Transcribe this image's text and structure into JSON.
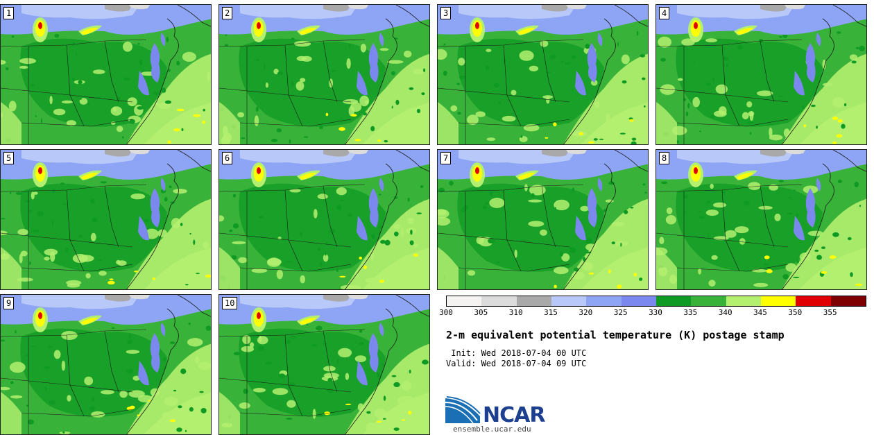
{
  "panels": [
    {
      "label": "1"
    },
    {
      "label": "2"
    },
    {
      "label": "3"
    },
    {
      "label": "4"
    },
    {
      "label": "5"
    },
    {
      "label": "6"
    },
    {
      "label": "7"
    },
    {
      "label": "8"
    },
    {
      "label": "9"
    },
    {
      "label": "10"
    }
  ],
  "colorbar": {
    "colors": [
      "#f5f2f2",
      "#dcdcdc",
      "#a9a9a9",
      "#b8c8f8",
      "#8ea4f4",
      "#7b88ee",
      "#0f9a23",
      "#38b238",
      "#b4f070",
      "#ffff00",
      "#e00000",
      "#7e0000"
    ],
    "ticks": [
      "300",
      "305",
      "310",
      "315",
      "320",
      "325",
      "330",
      "335",
      "340",
      "345",
      "350",
      "355"
    ]
  },
  "title": "2-m equivalent potential temperature (K) postage stamp",
  "init": " Init: Wed 2018-07-04 00 UTC",
  "valid": "Valid: Wed 2018-07-04 09 UTC",
  "logo": {
    "word": "NCAR",
    "site": "ensemble.ucar.edu",
    "color": "#1d3f8f"
  }
}
